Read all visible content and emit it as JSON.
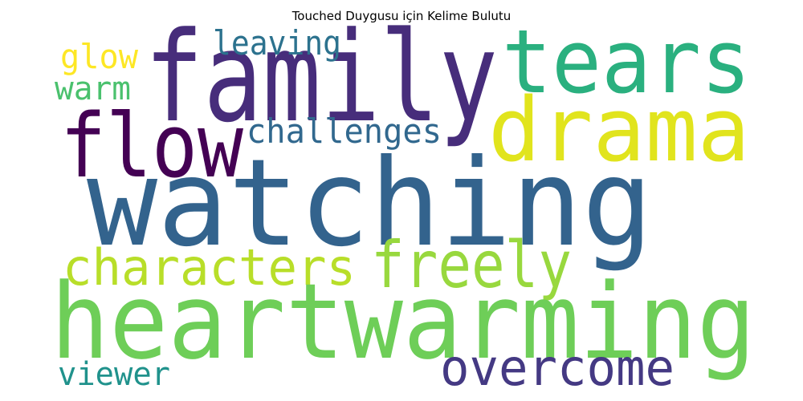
{
  "title": "Touched Duygusu için Kelime Bulutu",
  "words": [
    {
      "text": "family",
      "color": "#472d7b"
    },
    {
      "text": "tears",
      "color": "#2ab07f"
    },
    {
      "text": "leaving",
      "color": "#2c728e"
    },
    {
      "text": "glow",
      "color": "#fde725"
    },
    {
      "text": "warm",
      "color": "#4ac16d"
    },
    {
      "text": "drama",
      "color": "#e1e41d"
    },
    {
      "text": "flow",
      "color": "#440154"
    },
    {
      "text": "challenges",
      "color": "#31688e"
    },
    {
      "text": "watching",
      "color": "#33638d"
    },
    {
      "text": "characters",
      "color": "#b8de29"
    },
    {
      "text": "freely",
      "color": "#98d83e"
    },
    {
      "text": "heartwarming",
      "color": "#6ece58"
    },
    {
      "text": "viewer",
      "color": "#20928c"
    },
    {
      "text": "overcome",
      "color": "#443983"
    }
  ]
}
